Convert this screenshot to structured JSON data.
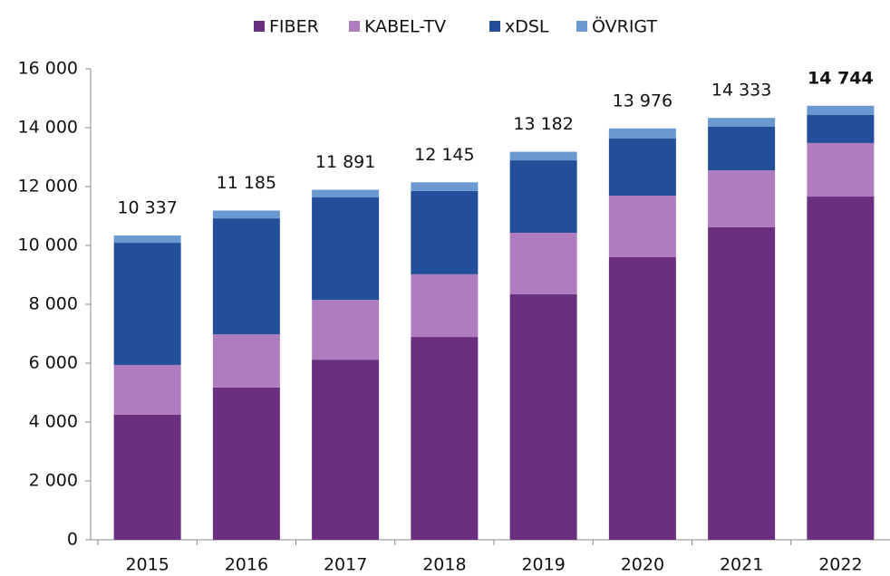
{
  "chart_data": {
    "type": "stacked_bar",
    "categories": [
      "2015",
      "2016",
      "2017",
      "2018",
      "2019",
      "2020",
      "2021",
      "2022"
    ],
    "series": [
      {
        "name": "FIBER",
        "color": "#6b2f7f",
        "values": [
          4250,
          5170,
          6120,
          6890,
          8340,
          9600,
          10620,
          11660
        ]
      },
      {
        "name": "KABEL-TV",
        "color": "#b07cc0",
        "values": [
          1690,
          1810,
          2030,
          2130,
          2090,
          2090,
          1930,
          1820
        ]
      },
      {
        "name": "xDSL",
        "color": "#234e99",
        "values": [
          4150,
          3940,
          3480,
          2830,
          2460,
          1940,
          1480,
          950
        ]
      },
      {
        "name": "ÖVRIGT",
        "color": "#6a98d0",
        "values": [
          247,
          265,
          261,
          295,
          292,
          346,
          303,
          314
        ]
      }
    ],
    "totals": [
      10337,
      11185,
      11891,
      12145,
      13182,
      13976,
      14333,
      14744
    ],
    "total_labels": [
      "10 337",
      "11 185",
      "11 891",
      "12 145",
      "13 182",
      "13 976",
      "14 333",
      "14 744"
    ],
    "ylim": [
      0,
      16000
    ],
    "yticks": [
      0,
      {
        "value": 2000,
        "label": "2 000"
      },
      {
        "value": 4000,
        "label": "4 000"
      },
      {
        "value": 6000,
        "label": "6 000"
      },
      {
        "value": 8000,
        "label": "8 000"
      },
      {
        "value": 10000,
        "label": "10 000"
      },
      {
        "value": 12000,
        "label": "12 000"
      },
      {
        "value": 14000,
        "label": "14 000"
      },
      {
        "value": 16000,
        "label": "16 000"
      }
    ],
    "legend": "top",
    "grid": false
  }
}
